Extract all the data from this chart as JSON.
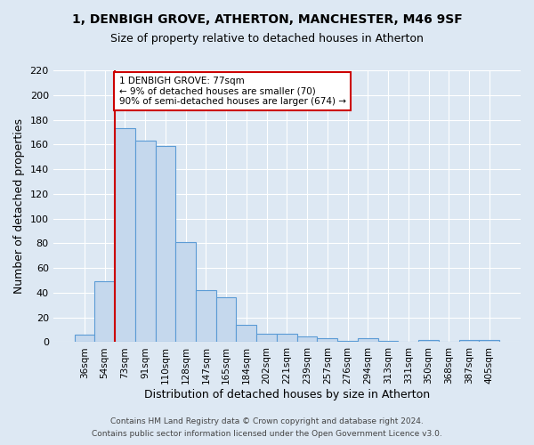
{
  "title1": "1, DENBIGH GROVE, ATHERTON, MANCHESTER, M46 9SF",
  "title2": "Size of property relative to detached houses in Atherton",
  "xlabel": "Distribution of detached houses by size in Atherton",
  "ylabel": "Number of detached properties",
  "bin_labels": [
    "36sqm",
    "54sqm",
    "73sqm",
    "91sqm",
    "110sqm",
    "128sqm",
    "147sqm",
    "165sqm",
    "184sqm",
    "202sqm",
    "221sqm",
    "239sqm",
    "257sqm",
    "276sqm",
    "294sqm",
    "313sqm",
    "331sqm",
    "350sqm",
    "368sqm",
    "387sqm",
    "405sqm"
  ],
  "bar_heights": [
    6,
    49,
    173,
    163,
    159,
    81,
    42,
    36,
    14,
    7,
    7,
    5,
    3,
    1,
    3,
    1,
    0,
    2,
    0,
    2,
    2
  ],
  "bar_color": "#c5d8ed",
  "bar_edge_color": "#5b9bd5",
  "background_color": "#dde8f3",
  "grid_color": "#ffffff",
  "vline_x_index": 2,
  "vline_color": "#cc0000",
  "annotation_text": "1 DENBIGH GROVE: 77sqm\n← 9% of detached houses are smaller (70)\n90% of semi-detached houses are larger (674) →",
  "annotation_box_edgecolor": "#cc0000",
  "ylim": [
    0,
    220
  ],
  "yticks": [
    0,
    20,
    40,
    60,
    80,
    100,
    120,
    140,
    160,
    180,
    200,
    220
  ],
  "footer1": "Contains HM Land Registry data © Crown copyright and database right 2024.",
  "footer2": "Contains public sector information licensed under the Open Government Licence v3.0."
}
